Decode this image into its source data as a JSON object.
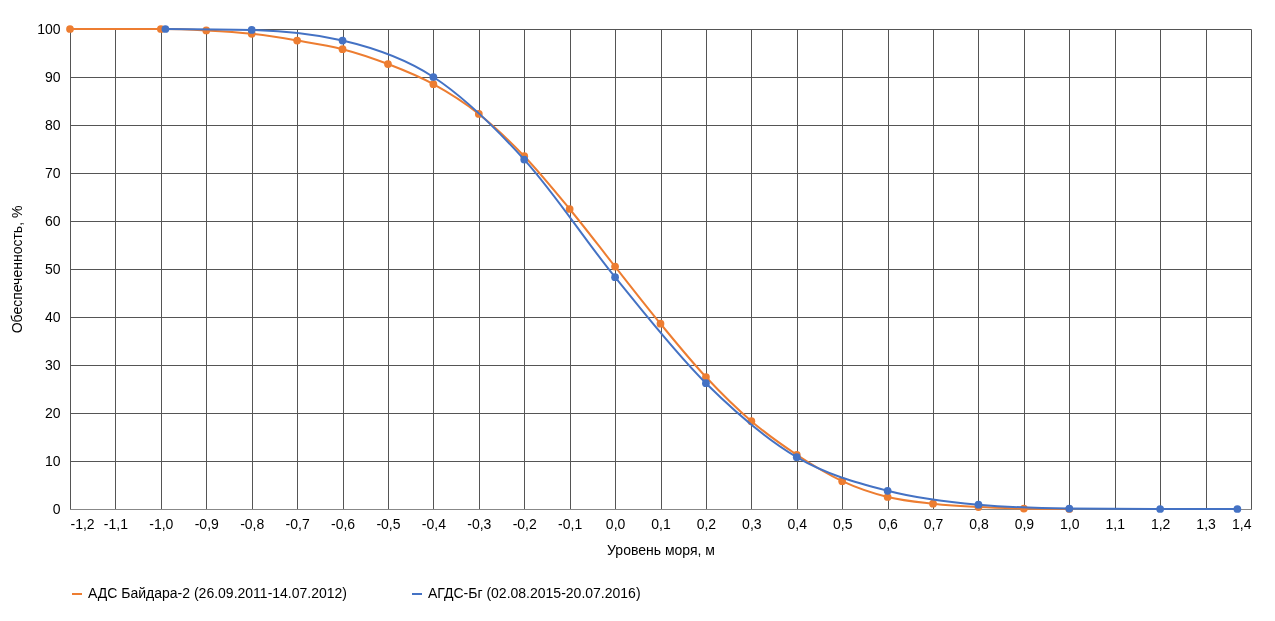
{
  "chart_data": {
    "type": "line",
    "xlabel": "Уровень моря, м",
    "ylabel": "Обеспеченность, %",
    "xlim": [
      -1.2,
      1.4
    ],
    "ylim": [
      0,
      100
    ],
    "xticks": [
      {
        "value": -1.2,
        "label": "-1,2"
      },
      {
        "value": -1.1,
        "label": "-1,1"
      },
      {
        "value": -1.0,
        "label": "-1,0"
      },
      {
        "value": -0.9,
        "label": "-0,9"
      },
      {
        "value": -0.8,
        "label": "-0,8"
      },
      {
        "value": -0.7,
        "label": "-0,7"
      },
      {
        "value": -0.6,
        "label": "-0,6"
      },
      {
        "value": -0.5,
        "label": "-0,5"
      },
      {
        "value": -0.4,
        "label": "-0,4"
      },
      {
        "value": -0.3,
        "label": "-0,3"
      },
      {
        "value": -0.2,
        "label": "-0,2"
      },
      {
        "value": -0.1,
        "label": "-0,1"
      },
      {
        "value": 0,
        "label": "0,0"
      },
      {
        "value": 0.1,
        "label": "0,1"
      },
      {
        "value": 0.2,
        "label": "0,2"
      },
      {
        "value": 0.3,
        "label": "0,3"
      },
      {
        "value": 0.4,
        "label": "0,4"
      },
      {
        "value": 0.5,
        "label": "0,5"
      },
      {
        "value": 0.6,
        "label": "0,6"
      },
      {
        "value": 0.7,
        "label": "0,7"
      },
      {
        "value": 0.8,
        "label": "0,8"
      },
      {
        "value": 0.9,
        "label": "0,9"
      },
      {
        "value": 1.0,
        "label": "1,0"
      },
      {
        "value": 1.1,
        "label": "1,1"
      },
      {
        "value": 1.2,
        "label": "1,2"
      },
      {
        "value": 1.3,
        "label": "1,3"
      },
      {
        "value": 1.4,
        "label": "1,4"
      }
    ],
    "yticks": [
      0,
      10,
      20,
      30,
      40,
      50,
      60,
      70,
      80,
      90,
      100
    ],
    "grid": true,
    "legend": "bottom",
    "marker": "circle",
    "series": [
      {
        "name": "АДС Байдара-2 (26.09.2011-14.07.2012)",
        "color": "#ed7d31",
        "x": [
          -1.2,
          -1.0,
          -0.9,
          -0.8,
          -0.7,
          -0.6,
          -0.5,
          -0.4,
          -0.3,
          -0.2,
          -0.1,
          0.0,
          0.1,
          0.2,
          0.3,
          0.4,
          0.5,
          0.6,
          0.7,
          0.8,
          0.9,
          1.0
        ],
        "values": [
          100,
          100,
          99.7,
          99,
          97.6,
          95.8,
          92.7,
          88.5,
          82.3,
          73.5,
          62.5,
          50.5,
          38.6,
          27.5,
          18.3,
          11.3,
          5.8,
          2.5,
          1.1,
          0.4,
          0.1,
          0
        ]
      },
      {
        "name": "АГДС-Бг (02.08.2015-20.07.2016)",
        "color": "#4472c4",
        "x": [
          -0.99,
          -0.8,
          -0.6,
          -0.4,
          -0.2,
          0.0,
          0.2,
          0.4,
          0.6,
          0.8,
          1.0,
          1.2,
          1.37
        ],
        "values": [
          100,
          99.8,
          97.6,
          90,
          72.8,
          48.3,
          26.2,
          10.8,
          3.8,
          0.9,
          0.1,
          0,
          0
        ]
      }
    ]
  }
}
